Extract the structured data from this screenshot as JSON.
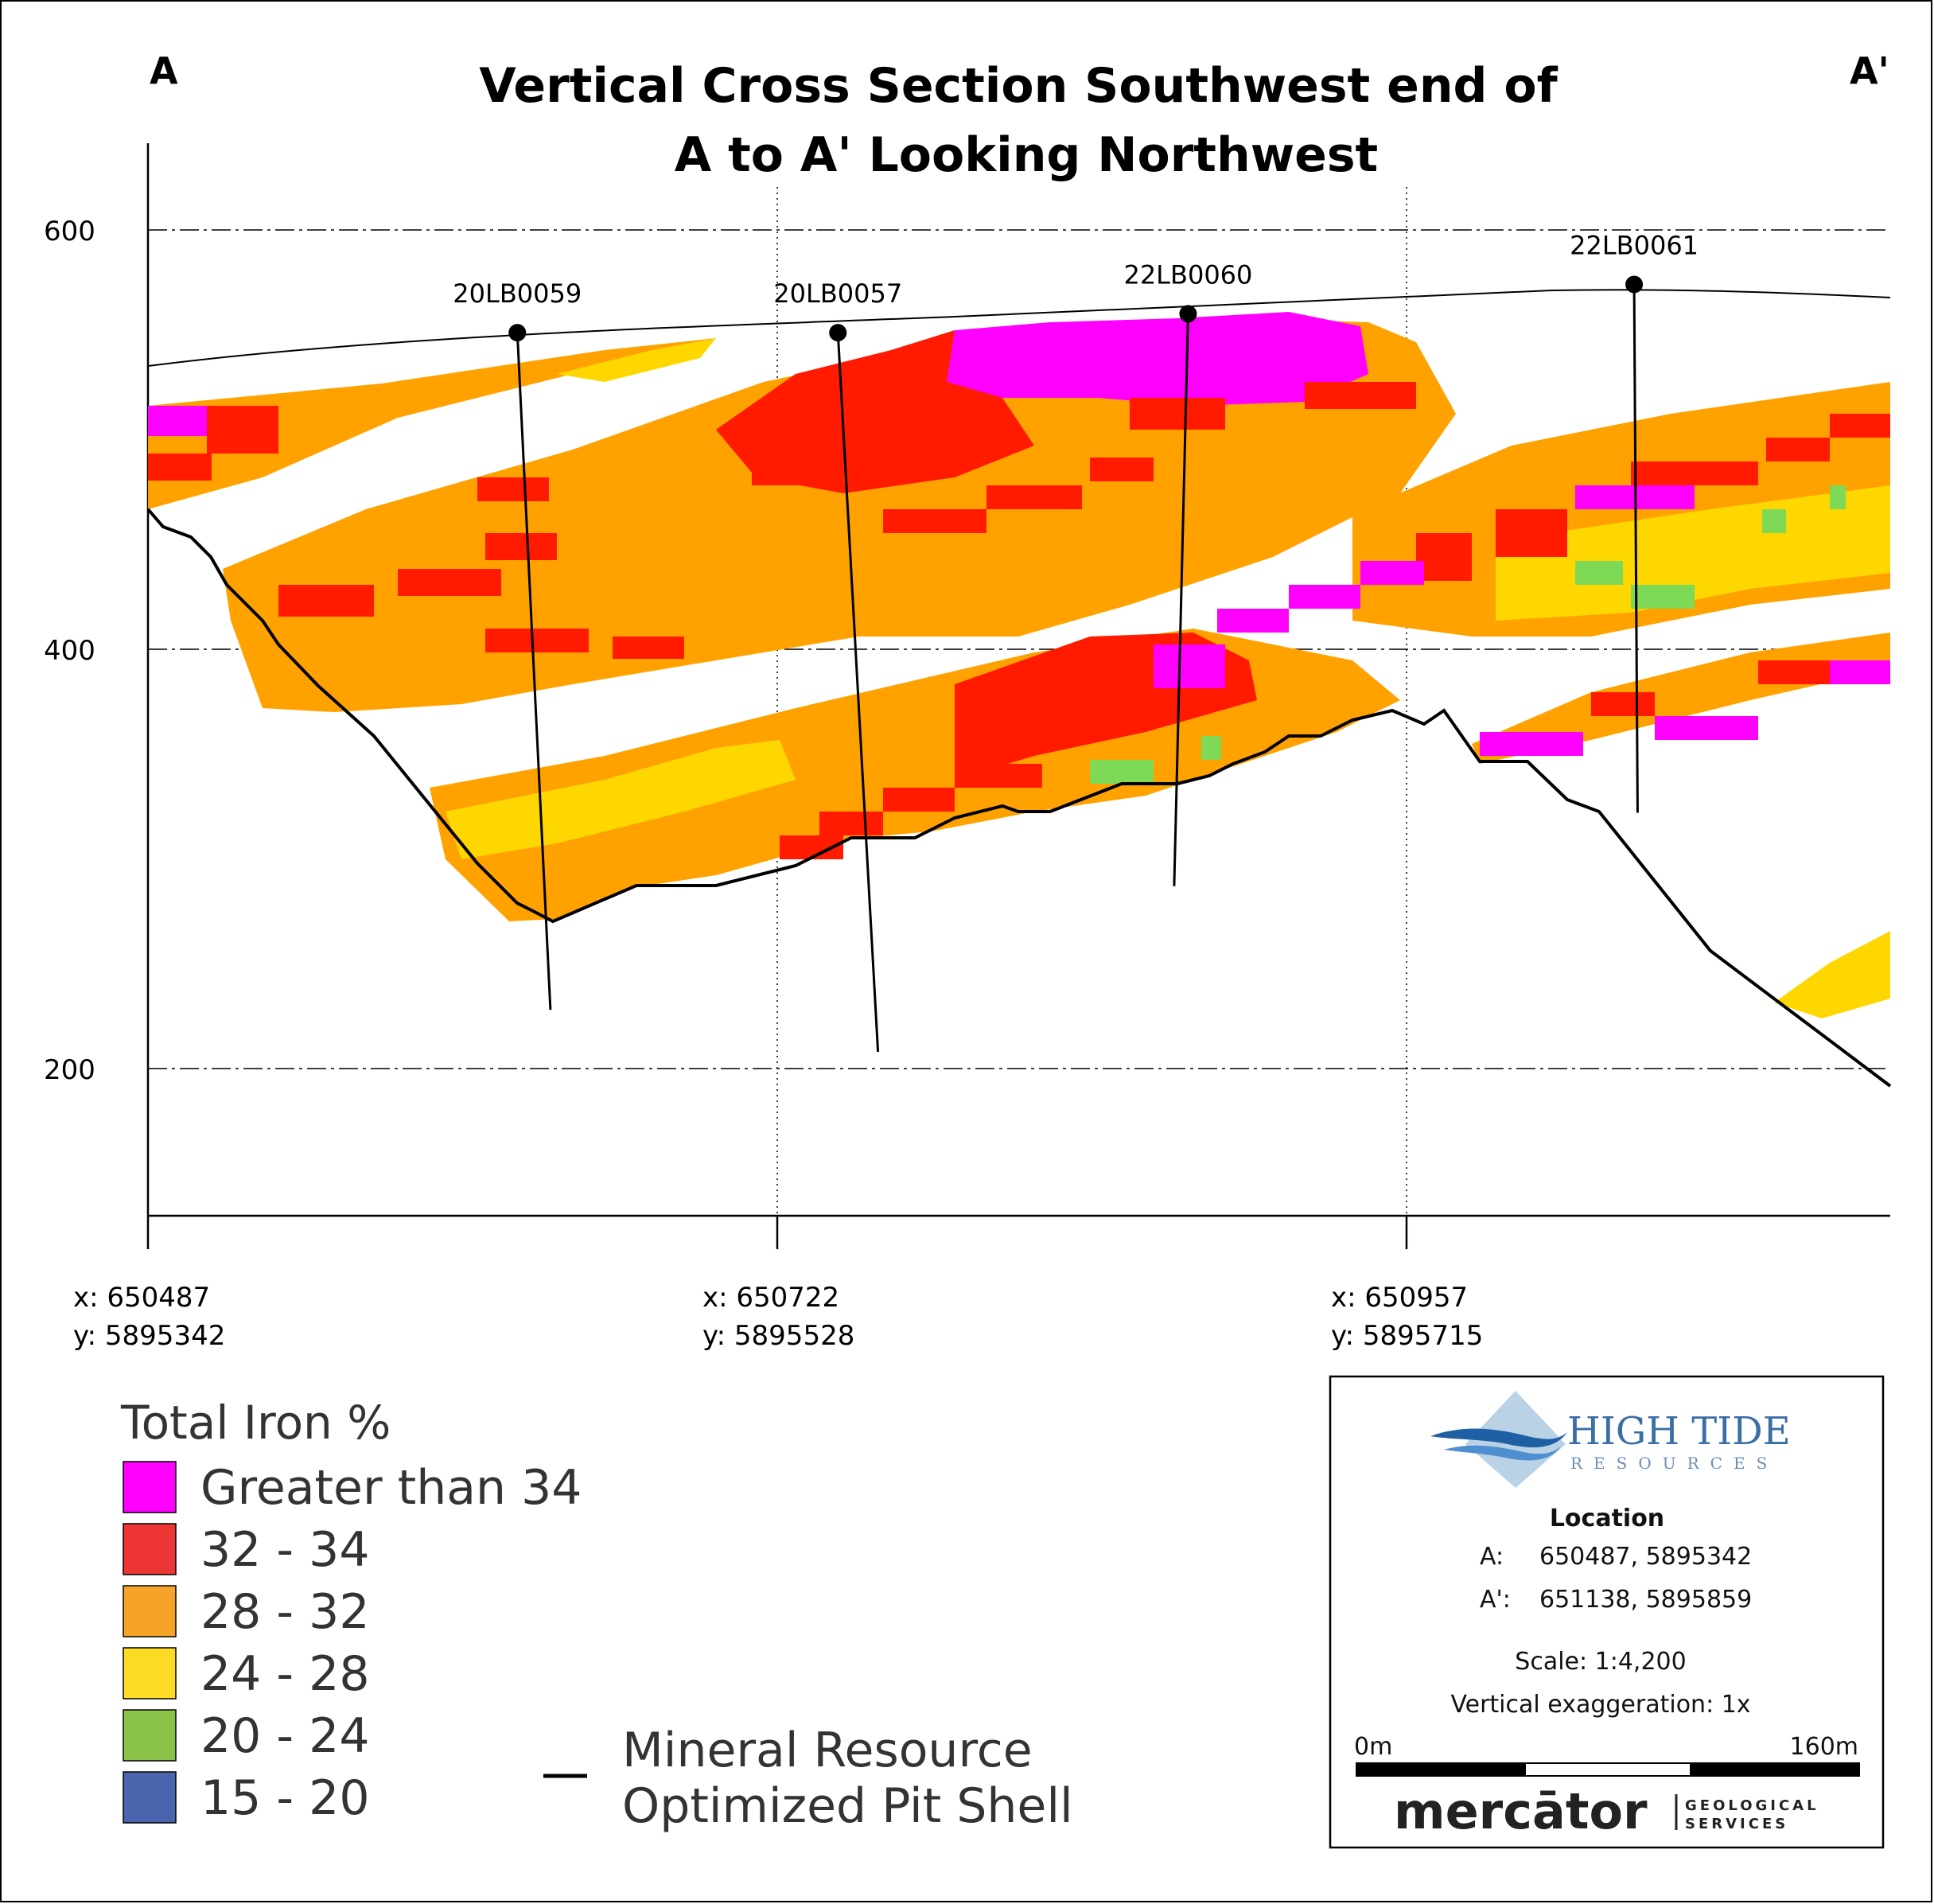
{
  "title_lines": [
    "Vertical Cross Section Southwest end of",
    "A to A' Looking Northwest"
  ],
  "section_ends": {
    "start": "A",
    "end": "A'"
  },
  "elevation_axis": {
    "ticks": [
      600,
      400,
      200
    ]
  },
  "drillholes": [
    {
      "id": "20LB0059",
      "collar_elev": 551,
      "bottom_elev": 228,
      "collar_frac": 0.212,
      "bottom_frac": 0.231
    },
    {
      "id": "20LB0057",
      "collar_elev": 551,
      "bottom_elev": 208,
      "collar_frac": 0.396,
      "bottom_frac": 0.419
    },
    {
      "id": "22LB0060",
      "collar_elev": 560,
      "bottom_elev": 287,
      "collar_frac": 0.597,
      "bottom_frac": 0.589
    },
    {
      "id": "22LB0061",
      "collar_elev": 574,
      "bottom_elev": 322,
      "collar_frac": 0.853,
      "bottom_frac": 0.855
    }
  ],
  "easting_ticks": [
    {
      "x": "x: 650487",
      "y": "y: 5895342"
    },
    {
      "x": "x: 650722",
      "y": "y: 5895528"
    },
    {
      "x": "x: 650957",
      "y": "y: 5895715"
    }
  ],
  "legend": {
    "title": "Total Iron %",
    "items": [
      {
        "label": "Greater than 34",
        "color": "#ff00ff"
      },
      {
        "label": "32 - 34",
        "color": "#ee3535"
      },
      {
        "label": "28 - 32",
        "color": "#f5a429"
      },
      {
        "label": "24 - 28",
        "color": "#fbdb24"
      },
      {
        "label": "20 - 24",
        "color": "#8bc34a"
      },
      {
        "label": "15 - 20",
        "color": "#4a64ad"
      }
    ],
    "pit_shell_lines": [
      "Mineral Resource",
      "Optimized Pit Shell"
    ]
  },
  "info_box": {
    "company_name": "HIGH TIDE",
    "company_sub": "RESOURCES",
    "location_heading": "Location",
    "points": [
      {
        "label": "A:",
        "value": "650487, 5895342"
      },
      {
        "label": "A':",
        "value": "651138, 5895859"
      }
    ],
    "scale": "Scale: 1:4,200",
    "vertical_exaggeration": "Vertical exaggeration: 1x",
    "scale_bar": {
      "start": "0m",
      "end": "160m"
    },
    "consultant_name": "mercātor",
    "consultant_sub_1": "GEOLOGICAL",
    "consultant_sub_2": "SERVICES"
  },
  "colors": {
    "gt34": "#ff00ff",
    "c32_34": "#ff1a00",
    "c28_32": "#ffa200",
    "c24_28": "#ffd700",
    "c20_24": "#7ed957"
  }
}
